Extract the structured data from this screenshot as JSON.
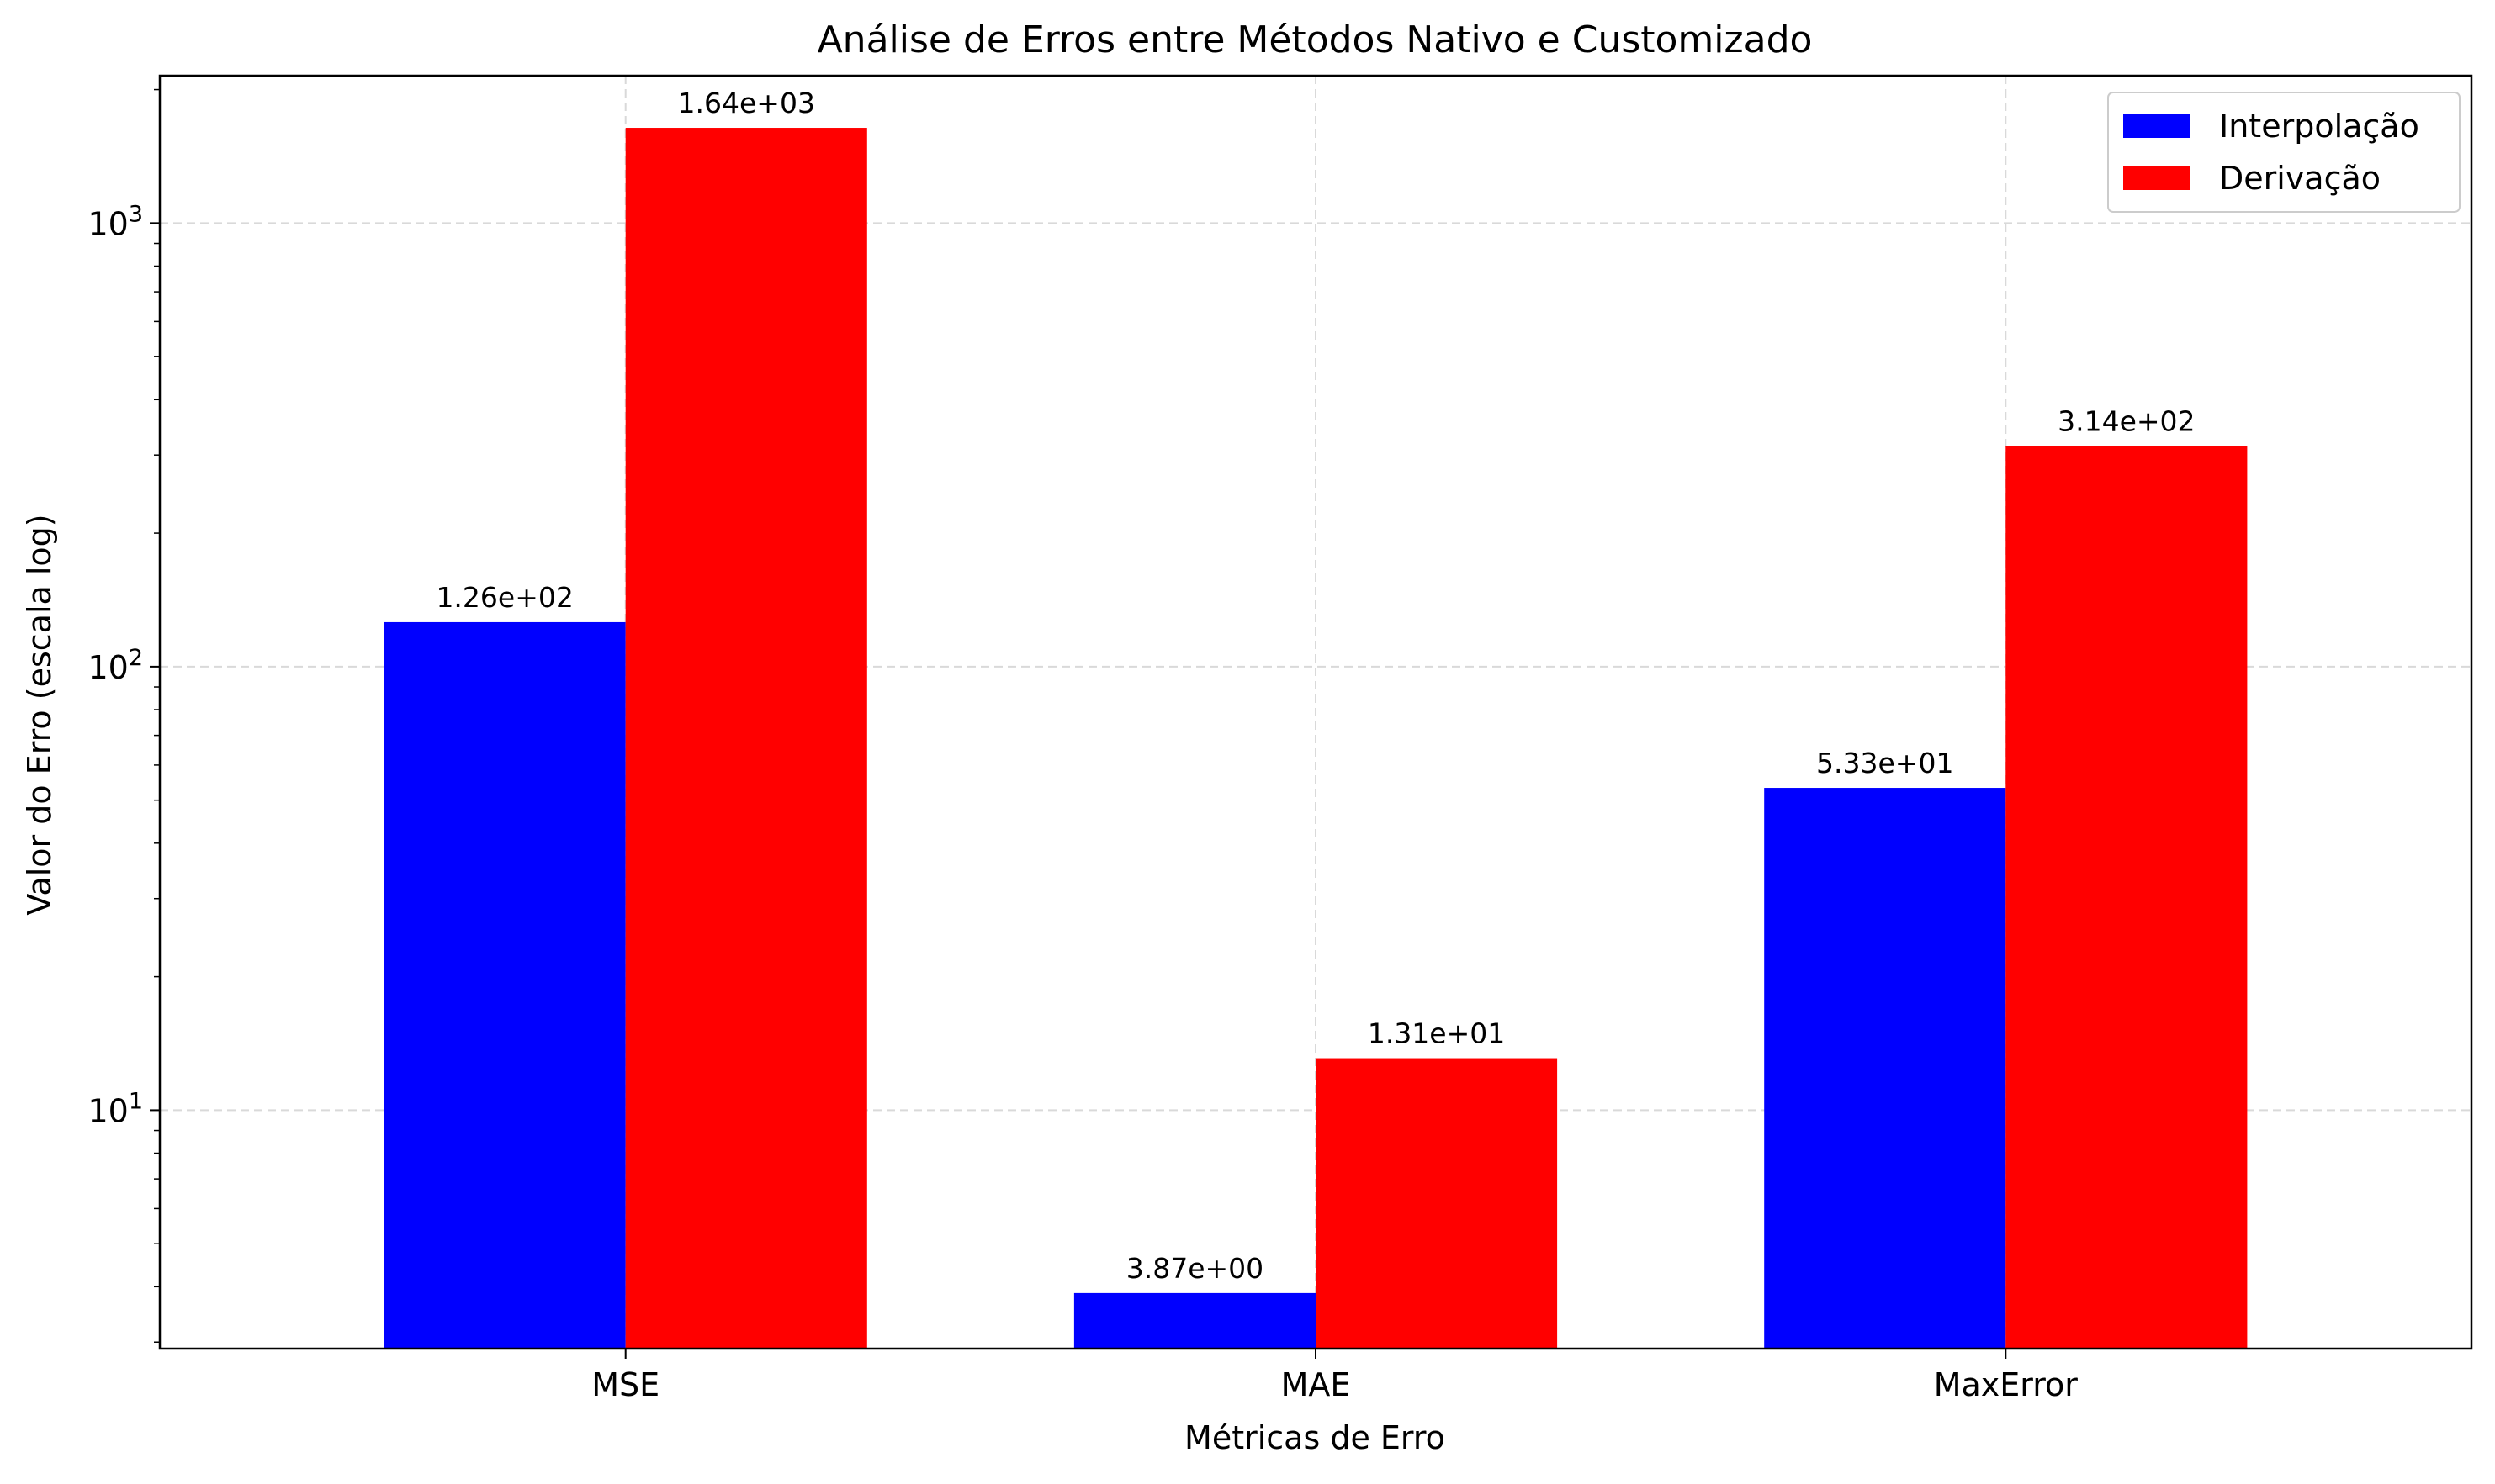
{
  "chart_data": {
    "type": "bar",
    "title": "Análise de Erros entre Métodos Nativo e Customizado",
    "xlabel": "Métricas de Erro",
    "ylabel": "Valor do Erro (escala log)",
    "yscale": "log",
    "ylim": [
      2.9,
      2150
    ],
    "yticks": [
      {
        "value": 10,
        "base": "10",
        "exp": "1"
      },
      {
        "value": 100,
        "base": "10",
        "exp": "2"
      },
      {
        "value": 1000,
        "base": "10",
        "exp": "3"
      }
    ],
    "categories": [
      "MSE",
      "MAE",
      "MaxError"
    ],
    "series": [
      {
        "name": "Interpolação",
        "color": "#0000ff",
        "values": [
          126,
          3.87,
          53.3
        ],
        "labels": [
          "1.26e+02",
          "3.87e+00",
          "5.33e+01"
        ]
      },
      {
        "name": "Derivação",
        "color": "#ff0000",
        "values": [
          1640,
          13.1,
          314
        ],
        "labels": [
          "1.64e+03",
          "1.31e+01",
          "3.14e+02"
        ]
      }
    ],
    "grid": true,
    "legend_position": "top-right"
  }
}
